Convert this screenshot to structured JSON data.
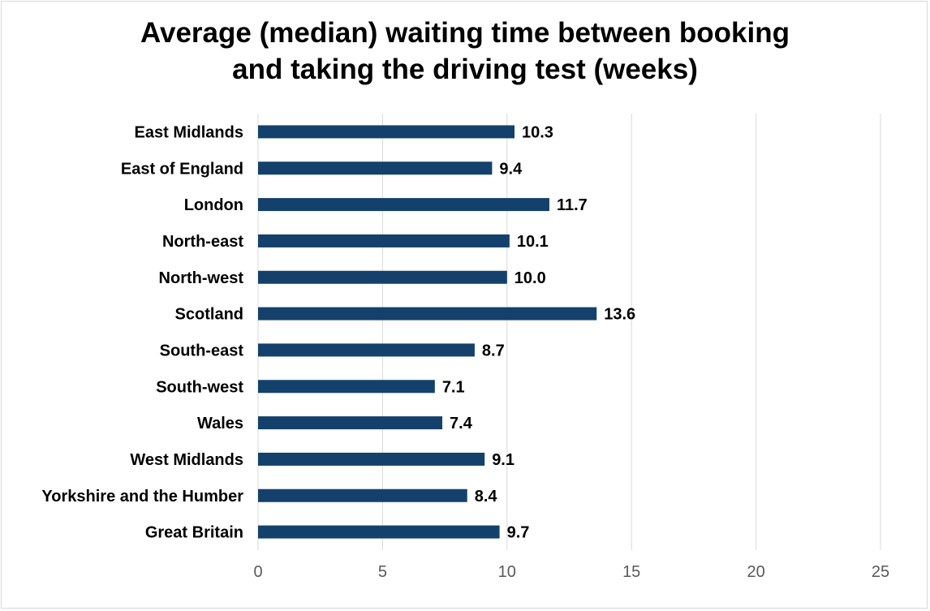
{
  "chart_data": {
    "type": "bar",
    "orientation": "horizontal",
    "title_lines": [
      "Average (median) waiting time between booking",
      "and taking the driving test (weeks)"
    ],
    "categories": [
      "East Midlands",
      "East of England",
      "London",
      "North-east",
      "North-west",
      "Scotland",
      "South-east",
      "South-west",
      "Wales",
      "West Midlands",
      "Yorkshire and the Humber",
      "Great Britain"
    ],
    "values": [
      10.3,
      9.4,
      11.7,
      10.1,
      10.0,
      13.6,
      8.7,
      7.1,
      7.4,
      9.1,
      8.4,
      9.7
    ],
    "value_labels": [
      "10.3",
      "9.4",
      "11.7",
      "10.1",
      "10.0",
      "13.6",
      "8.7",
      "7.1",
      "7.4",
      "9.1",
      "8.4",
      "9.7"
    ],
    "xlim": [
      0,
      25
    ],
    "x_ticks": [
      "0",
      "5",
      "10",
      "15",
      "20",
      "25"
    ],
    "xlabel": "",
    "ylabel": "",
    "grid": "vertical",
    "legend": "none",
    "bar_color": "#13416b",
    "grid_color": "#d9d9d9"
  }
}
